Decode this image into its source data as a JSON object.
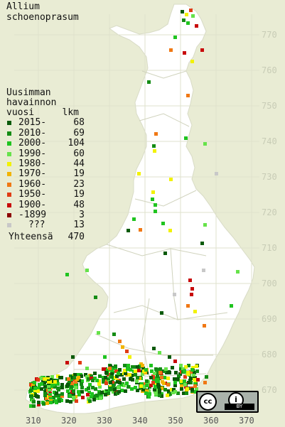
{
  "title": {
    "line1": "Allium",
    "line2": "schoenoprasum"
  },
  "legend": {
    "header1": "Uusimman",
    "header2": "havainnon",
    "header3": "vuosi",
    "count_header": "lkm",
    "items": [
      {
        "label": "2015-",
        "count": "68",
        "color": "#0a5a0a"
      },
      {
        "label": "2010-",
        "count": "69",
        "color": "#148c14"
      },
      {
        "label": "2000-",
        "count": "104",
        "color": "#1fc41f"
      },
      {
        "label": "1990-",
        "count": "60",
        "color": "#66e24a"
      },
      {
        "label": "1980-",
        "count": "44",
        "color": "#f2f200"
      },
      {
        "label": "1970-",
        "count": "19",
        "color": "#f2b400"
      },
      {
        "label": "1960-",
        "count": "23",
        "color": "#f07814"
      },
      {
        "label": "1950-",
        "count": "19",
        "color": "#e03c14"
      },
      {
        "label": "1900-",
        "count": "48",
        "color": "#c80a0a"
      },
      {
        "label": "-1899",
        "count": "3",
        "color": "#8c0000"
      },
      {
        "label": "???",
        "count": "13",
        "color": "#c8c8c8"
      }
    ],
    "total_label": "Yhteensä",
    "total_count": "470"
  },
  "y_ticks": [
    "770",
    "760",
    "750",
    "740",
    "730",
    "720",
    "710",
    "700",
    "690",
    "680",
    "670"
  ],
  "x_ticks": [
    "310",
    "320",
    "330",
    "340",
    "350",
    "360",
    "370"
  ],
  "license": {
    "cc": "cc",
    "by_icon": "i",
    "by_text": "BY"
  },
  "colors": {
    "land": "#ffffff",
    "water": "#e9ecd4",
    "grid": "#d8dcc6",
    "border": "#c9cbbb"
  }
}
